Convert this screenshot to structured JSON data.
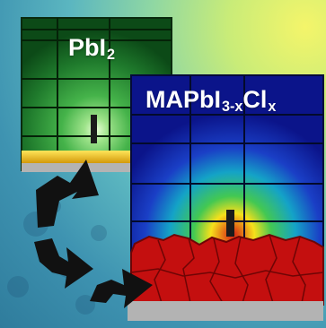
{
  "labels": {
    "pbi2_main": "PbI",
    "pbi2_sub": "2",
    "mapbi_main": "MAPbI",
    "mapbi_sub": "3-x",
    "mapbi_main2": "Cl",
    "mapbi_sub2": "x"
  },
  "colors": {
    "background_highlight": "#f4f56a",
    "pbi2_panel": "#1f7a2c",
    "mapbi_panel": "#1a2db8",
    "pbi2_film": "#f2c018",
    "mapbi_grains": "#c40f0f",
    "substrate": "#b3b3b3",
    "arrows": "#111111"
  },
  "icons": [
    "curved-arrow-icon",
    "curved-arrow-icon",
    "curved-arrow-icon"
  ]
}
